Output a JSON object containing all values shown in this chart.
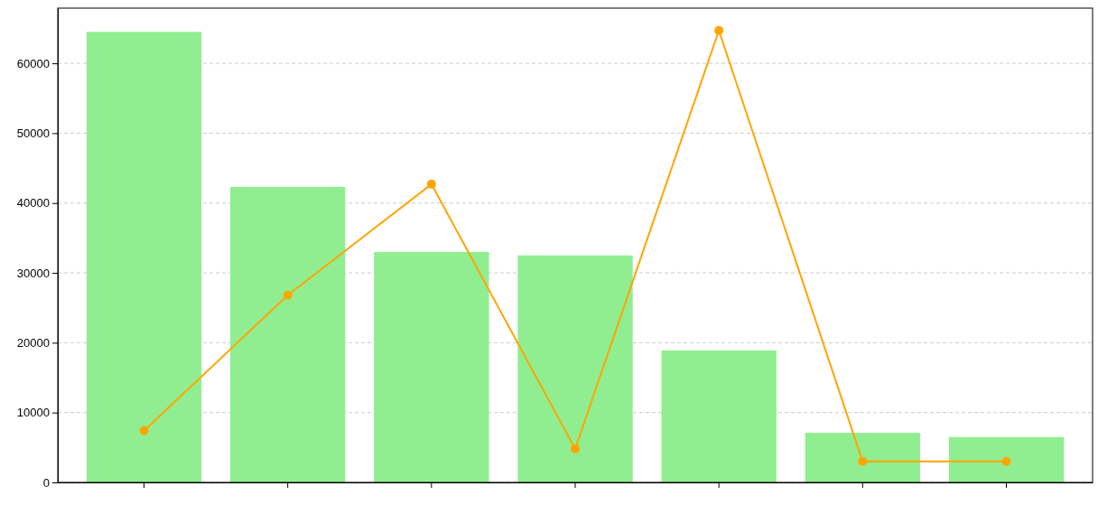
{
  "chart_data": {
    "type": "bar",
    "categories": [
      null,
      null,
      null,
      null,
      null,
      null,
      null
    ],
    "series": [
      {
        "color": "#90ee90",
        "values": [
          64500,
          42300,
          33000,
          32500,
          18900,
          7100,
          6500
        ]
      },
      {
        "type": "line",
        "color": "#ffa500",
        "values": [
          7400,
          26800,
          42700,
          4800,
          64700,
          3000,
          3000
        ]
      }
    ],
    "marker": "circle",
    "ylim": [
      0,
      67900
    ],
    "yticks": [
      0,
      10000,
      20000,
      30000,
      40000,
      50000,
      60000
    ],
    "grid": "y"
  }
}
